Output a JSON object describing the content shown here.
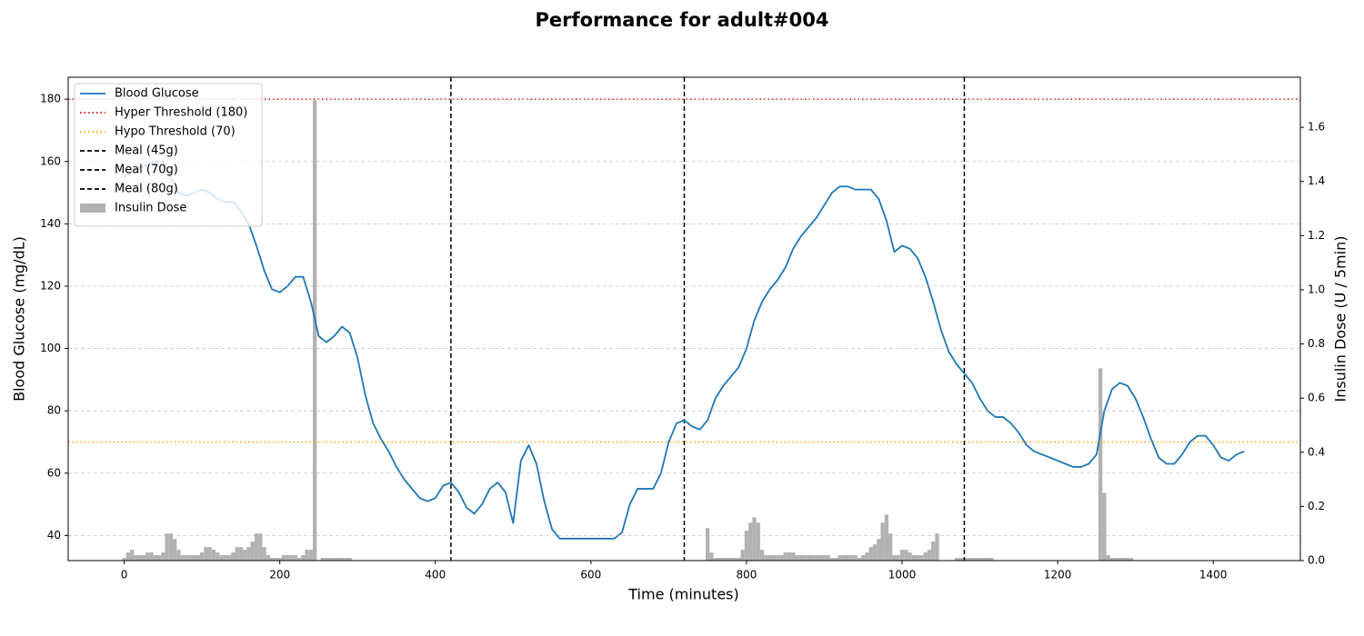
{
  "chart_data": {
    "type": "line",
    "title": "Performance for adult#004",
    "xlabel": "Time (minutes)",
    "ylabel": "Blood Glucose (mg/dL)",
    "y2label": "Insulin Dose (U / 5min)",
    "xlim": [
      -72,
      1512
    ],
    "ylim": [
      31.95,
      187.05
    ],
    "y2lim": [
      0,
      1.785
    ],
    "xticks": [
      0,
      200,
      400,
      600,
      800,
      1000,
      1200,
      1400
    ],
    "yticks": [
      40,
      60,
      80,
      100,
      120,
      140,
      160,
      180
    ],
    "y2ticks": [
      {
        "value": 0,
        "label": "0.0"
      },
      0.2,
      0.4,
      0.6,
      0.8,
      {
        "value": 1,
        "label": "1.0"
      },
      1.2,
      1.4,
      1.6
    ],
    "ylabel_color": "#1f77b4",
    "y2label_color": "#808080",
    "grid": true,
    "legend": "upper left",
    "series": [
      {
        "name": "Blood Glucose",
        "type": "line",
        "color": "#1f77b4",
        "x": [
          0,
          10,
          20,
          30,
          40,
          50,
          60,
          70,
          80,
          90,
          100,
          110,
          120,
          130,
          140,
          150,
          160,
          170,
          180,
          190,
          200,
          210,
          220,
          230,
          240,
          250,
          260,
          270,
          280,
          290,
          300,
          310,
          320,
          330,
          340,
          350,
          360,
          370,
          380,
          390,
          400,
          410,
          420,
          430,
          440,
          450,
          460,
          470,
          480,
          490,
          500,
          510,
          520,
          530,
          540,
          550,
          560,
          570,
          580,
          590,
          600,
          610,
          620,
          630,
          640,
          650,
          660,
          670,
          680,
          690,
          700,
          710,
          720,
          730,
          740,
          750,
          760,
          770,
          780,
          790,
          800,
          810,
          820,
          830,
          840,
          850,
          860,
          870,
          880,
          890,
          900,
          910,
          920,
          930,
          940,
          950,
          960,
          970,
          980,
          990,
          1000,
          1010,
          1020,
          1030,
          1040,
          1050,
          1060,
          1070,
          1080,
          1090,
          1100,
          1110,
          1120,
          1130,
          1140,
          1150,
          1160,
          1170,
          1180,
          1190,
          1200,
          1210,
          1220,
          1230,
          1240,
          1250,
          1260,
          1270,
          1280,
          1290,
          1300,
          1310,
          1320,
          1330,
          1340,
          1350,
          1360,
          1370,
          1380,
          1390,
          1400,
          1410,
          1420,
          1430,
          1440
        ],
        "values": [
          155,
          157,
          158,
          159,
          160,
          160,
          155,
          150,
          149,
          150,
          151,
          150,
          148,
          147,
          147,
          144,
          140,
          133,
          125,
          119,
          118,
          120,
          123,
          123,
          115,
          104,
          102,
          104,
          107,
          105,
          97,
          85,
          76,
          71,
          67,
          62,
          58,
          55,
          52,
          51,
          52,
          56,
          57,
          54,
          49,
          47,
          50,
          55,
          57,
          54,
          44,
          64,
          69,
          63,
          51,
          42,
          39,
          39,
          39,
          39,
          39,
          39,
          39,
          39,
          41,
          50,
          55,
          55,
          55,
          60,
          70,
          76,
          77,
          75,
          74,
          77,
          84,
          88,
          91,
          94,
          100,
          109,
          115,
          119,
          122,
          126,
          132,
          136,
          139,
          142,
          146,
          150,
          152,
          152,
          151,
          151,
          151,
          148,
          141,
          131,
          133,
          132,
          129,
          123,
          115,
          106,
          99,
          95,
          92,
          89,
          84,
          80,
          78,
          78,
          76,
          73,
          69,
          67,
          66,
          65,
          64,
          63,
          62,
          62,
          63,
          66,
          80,
          87,
          89,
          88,
          84,
          78,
          71,
          65,
          63,
          63,
          66,
          70,
          72,
          72,
          69,
          65,
          64,
          66,
          67
        ]
      },
      {
        "name": "Insulin Dose",
        "type": "bar",
        "axis": "y2",
        "color": "#b2b2b2",
        "width": 5,
        "x": [
          0,
          5,
          10,
          15,
          20,
          25,
          30,
          35,
          40,
          45,
          50,
          55,
          60,
          65,
          70,
          75,
          80,
          85,
          90,
          95,
          100,
          105,
          110,
          115,
          120,
          125,
          130,
          135,
          140,
          145,
          150,
          155,
          160,
          165,
          170,
          175,
          180,
          185,
          190,
          195,
          200,
          205,
          210,
          215,
          220,
          225,
          230,
          235,
          240,
          245,
          255,
          260,
          265,
          270,
          275,
          280,
          285,
          290,
          750,
          755,
          760,
          765,
          770,
          775,
          780,
          785,
          790,
          795,
          800,
          805,
          810,
          815,
          820,
          825,
          830,
          835,
          840,
          845,
          850,
          855,
          860,
          865,
          870,
          875,
          880,
          885,
          890,
          895,
          900,
          905,
          910,
          915,
          920,
          925,
          930,
          935,
          940,
          945,
          950,
          955,
          960,
          965,
          970,
          975,
          980,
          985,
          990,
          995,
          1000,
          1005,
          1010,
          1015,
          1020,
          1025,
          1030,
          1035,
          1040,
          1045,
          1070,
          1075,
          1080,
          1085,
          1090,
          1095,
          1100,
          1105,
          1110,
          1115,
          1255,
          1260,
          1265,
          1270,
          1275,
          1280,
          1285,
          1290,
          1295
        ],
        "values": [
          0.01,
          0.03,
          0.04,
          0.02,
          0.02,
          0.02,
          0.03,
          0.03,
          0.02,
          0.02,
          0.03,
          0.1,
          0.1,
          0.08,
          0.04,
          0.02,
          0.02,
          0.02,
          0.02,
          0.02,
          0.03,
          0.05,
          0.05,
          0.04,
          0.03,
          0.02,
          0.02,
          0.02,
          0.03,
          0.05,
          0.05,
          0.04,
          0.05,
          0.07,
          0.1,
          0.1,
          0.05,
          0.02,
          0.01,
          0.01,
          0.01,
          0.02,
          0.02,
          0.02,
          0.02,
          0.01,
          0.02,
          0.04,
          0.04,
          1.7,
          0.01,
          0.01,
          0.01,
          0.01,
          0.01,
          0.01,
          0.01,
          0.01,
          0.12,
          0.03,
          0.01,
          0.01,
          0.01,
          0.01,
          0.01,
          0.01,
          0.01,
          0.04,
          0.11,
          0.14,
          0.16,
          0.14,
          0.04,
          0.02,
          0.02,
          0.02,
          0.02,
          0.02,
          0.03,
          0.03,
          0.03,
          0.02,
          0.02,
          0.02,
          0.02,
          0.02,
          0.02,
          0.02,
          0.02,
          0.02,
          0.01,
          0.01,
          0.02,
          0.02,
          0.02,
          0.02,
          0.02,
          0.01,
          0.02,
          0.03,
          0.05,
          0.06,
          0.08,
          0.14,
          0.17,
          0.1,
          0.02,
          0.02,
          0.04,
          0.04,
          0.03,
          0.02,
          0.02,
          0.02,
          0.03,
          0.04,
          0.07,
          0.1,
          0.01,
          0.01,
          0.01,
          0.01,
          0.01,
          0.01,
          0.01,
          0.01,
          0.01,
          0.01,
          0.71,
          0.25,
          0.02,
          0.01,
          0.01,
          0.01,
          0.01,
          0.01,
          0.01
        ]
      }
    ],
    "hlines": [
      {
        "name": "Hyper Threshold (180)",
        "value": 180,
        "color": "#ff0000",
        "style": "dotted"
      },
      {
        "name": "Hypo Threshold (70)",
        "value": 70,
        "color": "#ffa500",
        "style": "dotted"
      }
    ],
    "vlines": [
      {
        "name": "Meal (45g)",
        "value": 420,
        "color": "#000000",
        "style": "dashed"
      },
      {
        "name": "Meal (70g)",
        "value": 720,
        "color": "#000000",
        "style": "dashed"
      },
      {
        "name": "Meal (80g)",
        "value": 1080,
        "color": "#000000",
        "style": "dashed"
      }
    ]
  }
}
